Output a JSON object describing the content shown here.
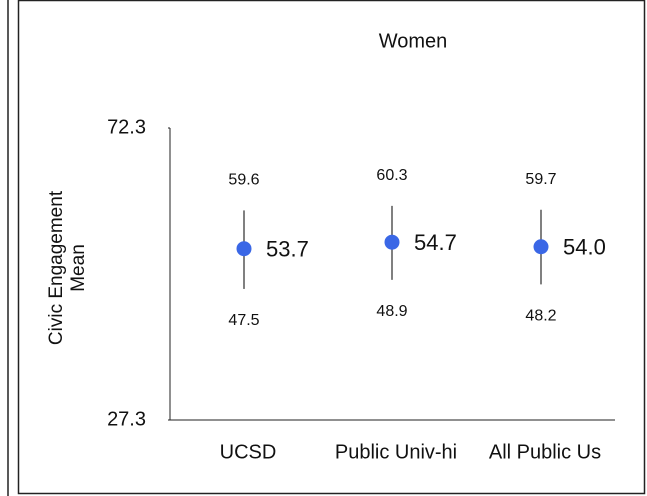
{
  "chart_data": {
    "type": "dot_range",
    "title": "Women",
    "ylabel": [
      "Civic Engagement",
      "Mean"
    ],
    "categories": [
      "UCSD",
      "Public Univ-hi",
      "All Public Us"
    ],
    "values": [
      53.7,
      54.7,
      54.0
    ],
    "value_labels": [
      "53.7",
      "54.7",
      "54.0"
    ],
    "upper": [
      59.6,
      60.3,
      59.7
    ],
    "lower": [
      47.5,
      48.9,
      48.2
    ],
    "color": "#3a67e6",
    "ylim": [
      27.3,
      72.3
    ],
    "yticks": [
      27.3,
      72.3
    ]
  }
}
